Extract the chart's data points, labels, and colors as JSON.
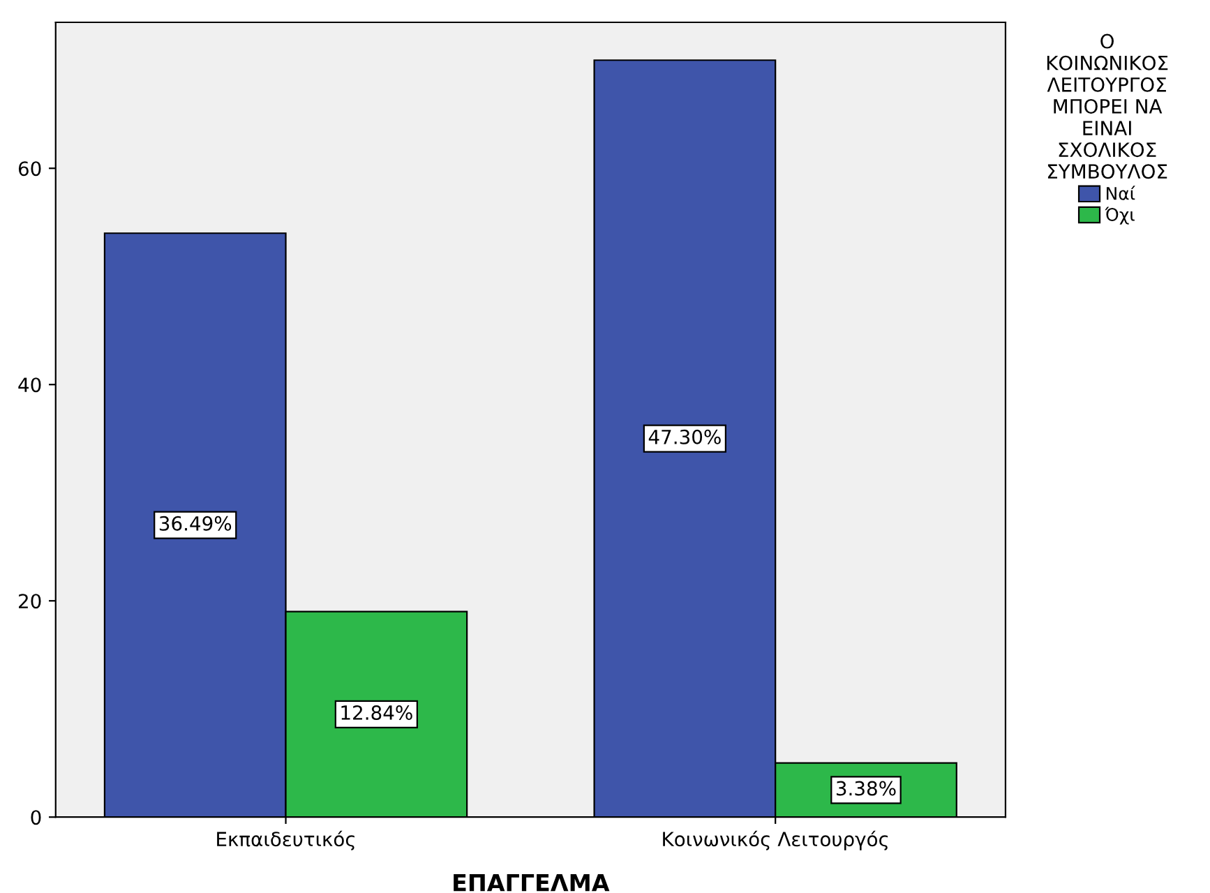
{
  "chart_data": {
    "type": "bar",
    "xlabel": "ΕΠΑΓΓΕΛΜΑ",
    "legend_title": "Ο\nΚΟΙΝΩΝΙΚΟΣ\nΛΕΙΤΟΥΡΓΟΣ\nΜΠΟΡΕΙ ΝΑ\nΕΙΝΑΙ\nΣΧΟΛΙΚΟΣ\nΣΥΜΒΟΥΛΟΣ",
    "categories": [
      "Εκπαιδευτικός",
      "Κοινωνικός Λειτουργός"
    ],
    "series": [
      {
        "name": "Ναί",
        "color": "#3f55aa",
        "values": [
          54,
          70
        ]
      },
      {
        "name": "Όχι",
        "color": "#2db84a",
        "values": [
          19,
          5
        ]
      }
    ],
    "annotations": [
      "36.49%",
      "47.30%",
      "12.84%",
      "3.38%"
    ],
    "ylim": [
      0,
      73.5
    ],
    "yticks": [
      0,
      20,
      40,
      60
    ],
    "grid": false,
    "legend": "top right"
  }
}
